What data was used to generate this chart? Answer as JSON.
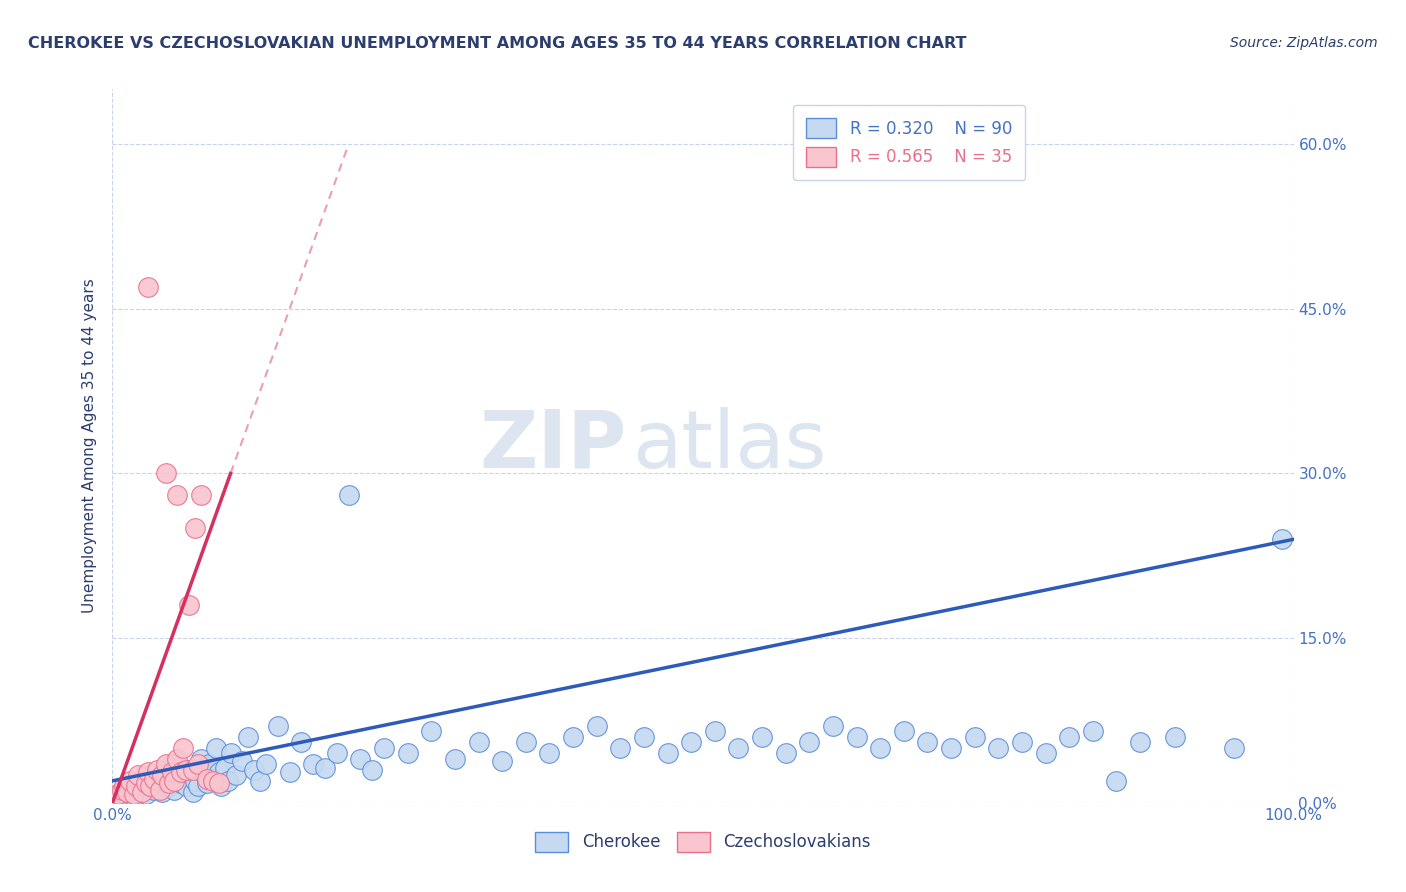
{
  "title": "CHEROKEE VS CZECHOSLOVAKIAN UNEMPLOYMENT AMONG AGES 35 TO 44 YEARS CORRELATION CHART",
  "source": "Source: ZipAtlas.com",
  "ylabel": "Unemployment Among Ages 35 to 44 years",
  "xlim": [
    0.0,
    1.0
  ],
  "ylim": [
    0.0,
    0.65
  ],
  "xticks": [
    0.0,
    1.0
  ],
  "xtick_labels": [
    "0.0%",
    "100.0%"
  ],
  "yticks": [
    0.0,
    0.15,
    0.3,
    0.45,
    0.6
  ],
  "ytick_labels_right": [
    "0.0%",
    "15.0%",
    "30.0%",
    "45.0%",
    "60.0%"
  ],
  "watermark_zip": "ZIP",
  "watermark_atlas": "atlas",
  "legend_blue_r": "R = 0.320",
  "legend_blue_n": "N = 90",
  "legend_pink_r": "R = 0.565",
  "legend_pink_n": "N = 35",
  "blue_fill": "#c5d9f0",
  "pink_fill": "#f9c5cf",
  "blue_edge": "#5b8dd9",
  "pink_edge": "#e8708a",
  "blue_trend": "#2e5bba",
  "pink_trend": "#d63060",
  "pink_dash": "#e8a0b0",
  "background_color": "#ffffff",
  "grid_color": "#c8d4e8",
  "title_color": "#2c3e6e",
  "source_color": "#2c3e6e",
  "ylabel_color": "#2c3e6e",
  "tick_color": "#4472c4",
  "blue_points": [
    [
      0.005,
      0.005
    ],
    [
      0.008,
      0.01
    ],
    [
      0.01,
      0.008
    ],
    [
      0.012,
      0.012
    ],
    [
      0.015,
      0.015
    ],
    [
      0.018,
      0.005
    ],
    [
      0.02,
      0.018
    ],
    [
      0.022,
      0.01
    ],
    [
      0.025,
      0.022
    ],
    [
      0.028,
      0.008
    ],
    [
      0.03,
      0.015
    ],
    [
      0.032,
      0.025
    ],
    [
      0.035,
      0.012
    ],
    [
      0.038,
      0.02
    ],
    [
      0.04,
      0.018
    ],
    [
      0.042,
      0.01
    ],
    [
      0.045,
      0.028
    ],
    [
      0.048,
      0.015
    ],
    [
      0.05,
      0.035
    ],
    [
      0.052,
      0.012
    ],
    [
      0.055,
      0.02
    ],
    [
      0.058,
      0.018
    ],
    [
      0.06,
      0.025
    ],
    [
      0.062,
      0.015
    ],
    [
      0.065,
      0.03
    ],
    [
      0.068,
      0.01
    ],
    [
      0.07,
      0.02
    ],
    [
      0.072,
      0.015
    ],
    [
      0.075,
      0.04
    ],
    [
      0.078,
      0.025
    ],
    [
      0.08,
      0.018
    ],
    [
      0.082,
      0.035
    ],
    [
      0.085,
      0.022
    ],
    [
      0.088,
      0.05
    ],
    [
      0.09,
      0.028
    ],
    [
      0.092,
      0.015
    ],
    [
      0.095,
      0.032
    ],
    [
      0.098,
      0.02
    ],
    [
      0.1,
      0.045
    ],
    [
      0.105,
      0.025
    ],
    [
      0.11,
      0.038
    ],
    [
      0.115,
      0.06
    ],
    [
      0.12,
      0.03
    ],
    [
      0.125,
      0.02
    ],
    [
      0.13,
      0.035
    ],
    [
      0.14,
      0.07
    ],
    [
      0.15,
      0.028
    ],
    [
      0.16,
      0.055
    ],
    [
      0.17,
      0.035
    ],
    [
      0.18,
      0.032
    ],
    [
      0.19,
      0.045
    ],
    [
      0.2,
      0.28
    ],
    [
      0.21,
      0.04
    ],
    [
      0.22,
      0.03
    ],
    [
      0.23,
      0.05
    ],
    [
      0.25,
      0.045
    ],
    [
      0.27,
      0.065
    ],
    [
      0.29,
      0.04
    ],
    [
      0.31,
      0.055
    ],
    [
      0.33,
      0.038
    ],
    [
      0.35,
      0.055
    ],
    [
      0.37,
      0.045
    ],
    [
      0.39,
      0.06
    ],
    [
      0.41,
      0.07
    ],
    [
      0.43,
      0.05
    ],
    [
      0.45,
      0.06
    ],
    [
      0.47,
      0.045
    ],
    [
      0.49,
      0.055
    ],
    [
      0.51,
      0.065
    ],
    [
      0.53,
      0.05
    ],
    [
      0.55,
      0.06
    ],
    [
      0.57,
      0.045
    ],
    [
      0.59,
      0.055
    ],
    [
      0.61,
      0.07
    ],
    [
      0.63,
      0.06
    ],
    [
      0.65,
      0.05
    ],
    [
      0.67,
      0.065
    ],
    [
      0.69,
      0.055
    ],
    [
      0.71,
      0.05
    ],
    [
      0.73,
      0.06
    ],
    [
      0.75,
      0.05
    ],
    [
      0.77,
      0.055
    ],
    [
      0.79,
      0.045
    ],
    [
      0.81,
      0.06
    ],
    [
      0.83,
      0.065
    ],
    [
      0.85,
      0.02
    ],
    [
      0.87,
      0.055
    ],
    [
      0.9,
      0.06
    ],
    [
      0.95,
      0.05
    ],
    [
      0.99,
      0.24
    ]
  ],
  "pink_points": [
    [
      0.005,
      0.008
    ],
    [
      0.008,
      0.012
    ],
    [
      0.01,
      0.015
    ],
    [
      0.012,
      0.01
    ],
    [
      0.015,
      0.02
    ],
    [
      0.018,
      0.008
    ],
    [
      0.02,
      0.015
    ],
    [
      0.022,
      0.025
    ],
    [
      0.025,
      0.01
    ],
    [
      0.028,
      0.018
    ],
    [
      0.03,
      0.028
    ],
    [
      0.032,
      0.015
    ],
    [
      0.035,
      0.022
    ],
    [
      0.038,
      0.03
    ],
    [
      0.04,
      0.012
    ],
    [
      0.042,
      0.025
    ],
    [
      0.045,
      0.035
    ],
    [
      0.048,
      0.018
    ],
    [
      0.05,
      0.028
    ],
    [
      0.052,
      0.02
    ],
    [
      0.055,
      0.04
    ],
    [
      0.058,
      0.028
    ],
    [
      0.06,
      0.05
    ],
    [
      0.062,
      0.03
    ],
    [
      0.065,
      0.18
    ],
    [
      0.068,
      0.03
    ],
    [
      0.07,
      0.25
    ],
    [
      0.072,
      0.035
    ],
    [
      0.075,
      0.28
    ],
    [
      0.03,
      0.47
    ],
    [
      0.045,
      0.3
    ],
    [
      0.055,
      0.28
    ],
    [
      0.08,
      0.022
    ],
    [
      0.085,
      0.02
    ],
    [
      0.09,
      0.018
    ]
  ],
  "blue_trend_endpoints": [
    [
      0.0,
      0.02
    ],
    [
      1.0,
      0.24
    ]
  ],
  "pink_trend_endpoints": [
    [
      0.0,
      0.0
    ],
    [
      0.1,
      0.3
    ]
  ],
  "pink_dash_endpoints": [
    [
      0.0,
      0.0
    ],
    [
      0.2,
      0.6
    ]
  ]
}
